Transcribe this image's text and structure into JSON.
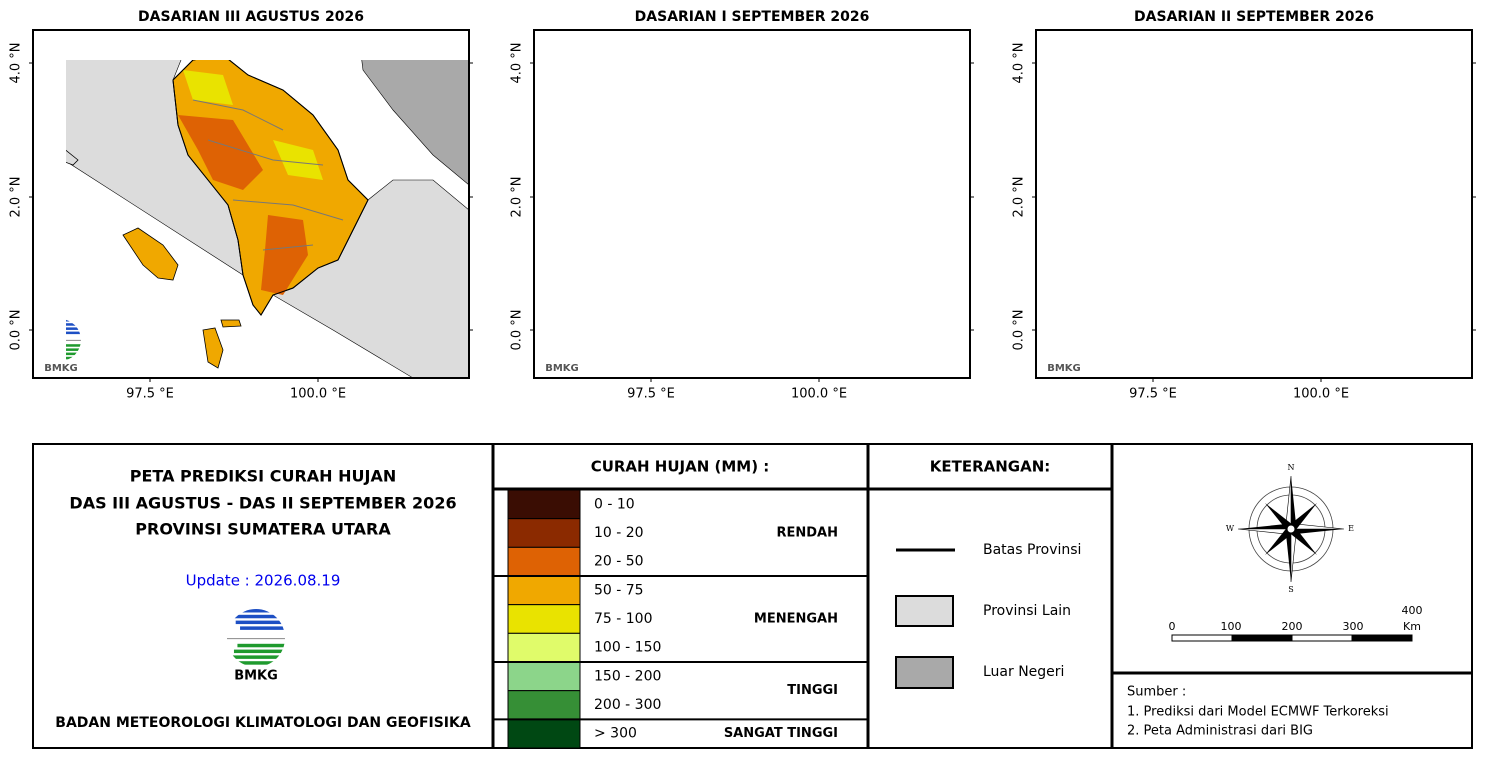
{
  "maps": [
    {
      "title": "DASARIAN III AGUSTUS 2026",
      "yticks": [
        "4.0 °N",
        "2.0 °N",
        "0.0 °N"
      ],
      "xticks": [
        "97.5 °E",
        "100.0 °E"
      ],
      "logo": "BMKG"
    },
    {
      "title": "DASARIAN I SEPTEMBER 2026",
      "yticks": [
        "4.0 °N",
        "2.0 °N",
        "0.0 °N"
      ],
      "xticks": [
        "97.5 °E",
        "100.0 °E"
      ],
      "logo": "BMKG"
    },
    {
      "title": "DASARIAN II SEPTEMBER 2026",
      "yticks": [
        "4.0 °N",
        "2.0 °N",
        "0.0 °N"
      ],
      "xticks": [
        "97.5 °E",
        "100.0 °E"
      ],
      "logo": "BMKG"
    }
  ],
  "header": {
    "lines": [
      "PETA PREDIKSI CURAH HUJAN",
      "DAS III AGUSTUS - DAS II SEPTEMBER 2026",
      "PROVINSI SUMATERA UTARA"
    ],
    "update": "Update : 2026.08.19",
    "logo": "BMKG",
    "agency": "BADAN METEOROLOGI KLIMATOLOGI DAN GEOFISIKA"
  },
  "legend": {
    "title": "CURAH HUJAN (MM) :",
    "classes": [
      {
        "label": "0 - 10",
        "color": "#3a0d03"
      },
      {
        "label": "10 - 20",
        "color": "#8b2a00"
      },
      {
        "label": "20 - 50",
        "color": "#de6204"
      },
      {
        "label": "50 - 75",
        "color": "#f0a800"
      },
      {
        "label": "75 - 100",
        "color": "#e9e300"
      },
      {
        "label": "100 - 150",
        "color": "#e0fb6a"
      },
      {
        "label": "150 - 200",
        "color": "#8cd58a"
      },
      {
        "label": "200 - 300",
        "color": "#368f36"
      },
      {
        "label": "> 300",
        "color": "#004813"
      }
    ],
    "groups": [
      "RENDAH",
      "MENENGAH",
      "TINGGI",
      "SANGAT TINGGI"
    ]
  },
  "keterangan": {
    "title": "KETERANGAN:",
    "items": [
      "Batas Provinsi",
      "Provinsi Lain",
      "Luar Negeri"
    ]
  },
  "compass": {
    "n": "N",
    "s": "S",
    "e": "E",
    "w": "W"
  },
  "scale": {
    "ticks": [
      "0",
      "100",
      "200",
      "300",
      "400"
    ],
    "unit": "Km"
  },
  "source": {
    "title": "Sumber :",
    "lines": [
      "1. Prediksi dari Model ECMWF Terkoreksi",
      "2. Peta Administrasi dari BIG"
    ]
  }
}
